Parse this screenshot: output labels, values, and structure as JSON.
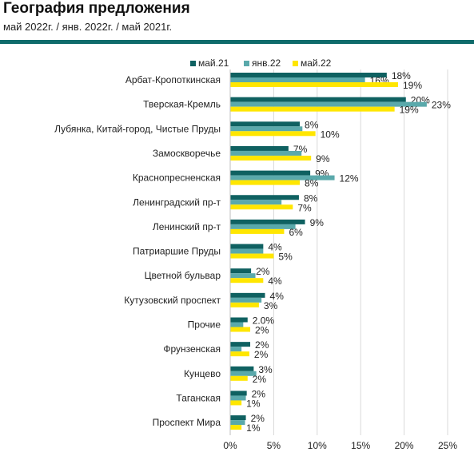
{
  "header": {
    "title": "География предложения",
    "subtitle": "май 2022г. / янв. 2022г. / май 2021г."
  },
  "colors": {
    "may21": "#0f6161",
    "jan22": "#5aa9ab",
    "may22": "#ffe600",
    "rule": "#0f6b6b"
  },
  "chart_data": {
    "type": "bar",
    "orientation": "horizontal",
    "title": "География предложения",
    "subtitle": "май 2022г. / янв. 2022г. / май 2021г.",
    "categories": [
      "Арбат-Кропоткинская",
      "Тверская-Кремль",
      "Лубянка, Китай-город, Чистые Пруды",
      "Замоскворечье",
      "Краснопресненская",
      "Ленинградский пр-т",
      "Ленинский пр-т",
      "Патриаршие Пруды",
      "Цветной бульвар",
      "Кутузовский проспект",
      "Прочие",
      "Фрунзенская",
      "Кунцево",
      "Таганская",
      "Проспект Мира"
    ],
    "series": [
      {
        "name": "май.21",
        "color": "#0f6161",
        "values": [
          18.0,
          20.2,
          8.0,
          6.7,
          9.2,
          7.9,
          8.6,
          3.8,
          2.4,
          4.0,
          2.0,
          2.3,
          2.7,
          1.9,
          1.8
        ]
      },
      {
        "name": "янв.22",
        "color": "#5aa9ab",
        "values": [
          15.5,
          22.6,
          8.3,
          8.2,
          12.0,
          5.9,
          7.5,
          3.8,
          2.9,
          3.6,
          1.5,
          1.3,
          3.0,
          1.8,
          1.7
        ]
      },
      {
        "name": "май.22",
        "color": "#ffe600",
        "values": [
          19.3,
          18.9,
          9.8,
          9.3,
          8.0,
          7.2,
          6.2,
          5.0,
          3.8,
          3.3,
          2.3,
          2.2,
          2.0,
          1.3,
          1.3
        ]
      }
    ],
    "labels": [
      [
        "18%",
        "16%",
        "19%"
      ],
      [
        "20%",
        "23%",
        "19%"
      ],
      [
        "8%",
        "",
        "10%"
      ],
      [
        "7%",
        "",
        "9%"
      ],
      [
        "9%",
        "12%",
        "8%"
      ],
      [
        "8%",
        "",
        "7%"
      ],
      [
        "9%",
        "",
        "6%"
      ],
      [
        "4%",
        "",
        "5%"
      ],
      [
        "2%",
        "",
        "4%"
      ],
      [
        "4%",
        "",
        "3%"
      ],
      [
        "2.0%",
        "",
        "2%"
      ],
      [
        "2%",
        "",
        "2%"
      ],
      [
        "3%",
        "",
        "2%"
      ],
      [
        "2%",
        "",
        "1%"
      ],
      [
        "2%",
        "",
        "1%"
      ]
    ],
    "xlim": [
      0,
      25
    ],
    "xticks": [
      "0%",
      "5%",
      "10%",
      "15%",
      "20%",
      "25%"
    ],
    "legend": [
      "май.21",
      "янв.22",
      "май.22"
    ],
    "legend_position": "top",
    "grid": true
  }
}
